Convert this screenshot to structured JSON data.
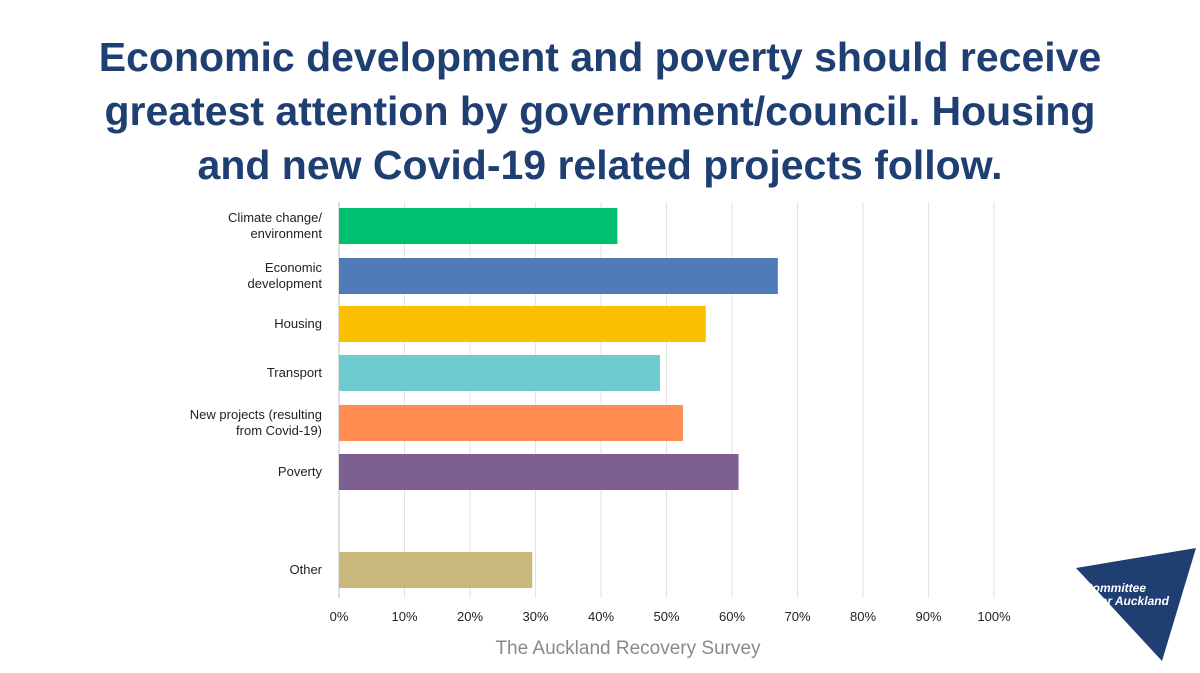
{
  "title": {
    "lines": [
      "Economic development and poverty should receive",
      "greatest attention by government/council.  Housing",
      "and new Covid-19 related projects follow."
    ]
  },
  "source": "The Auckland Recovery Survey",
  "logo": {
    "lines": [
      "Committee",
      "for Auckland"
    ],
    "color": "#1f3f73"
  },
  "chart_data": {
    "type": "bar",
    "orientation": "horizontal",
    "categories": [
      [
        "Climate change/",
        "environment"
      ],
      [
        "Economic",
        "development"
      ],
      [
        "Housing"
      ],
      [
        "Transport"
      ],
      [
        "New projects (resulting",
        "from Covid-19)"
      ],
      [
        "Poverty"
      ],
      [
        "Other"
      ]
    ],
    "values": [
      42.5,
      67,
      56,
      49,
      52.5,
      61,
      29.5
    ],
    "colors": [
      "#00c070",
      "#4f7bb8",
      "#fbc000",
      "#6ecbd0",
      "#ff8c50",
      "#7d5f91",
      "#c8b87c"
    ],
    "xlim": [
      0,
      100
    ],
    "xticks": [
      "0%",
      "10%",
      "20%",
      "30%",
      "40%",
      "50%",
      "60%",
      "70%",
      "80%",
      "90%",
      "100%"
    ],
    "grid": true,
    "legend": "none"
  }
}
